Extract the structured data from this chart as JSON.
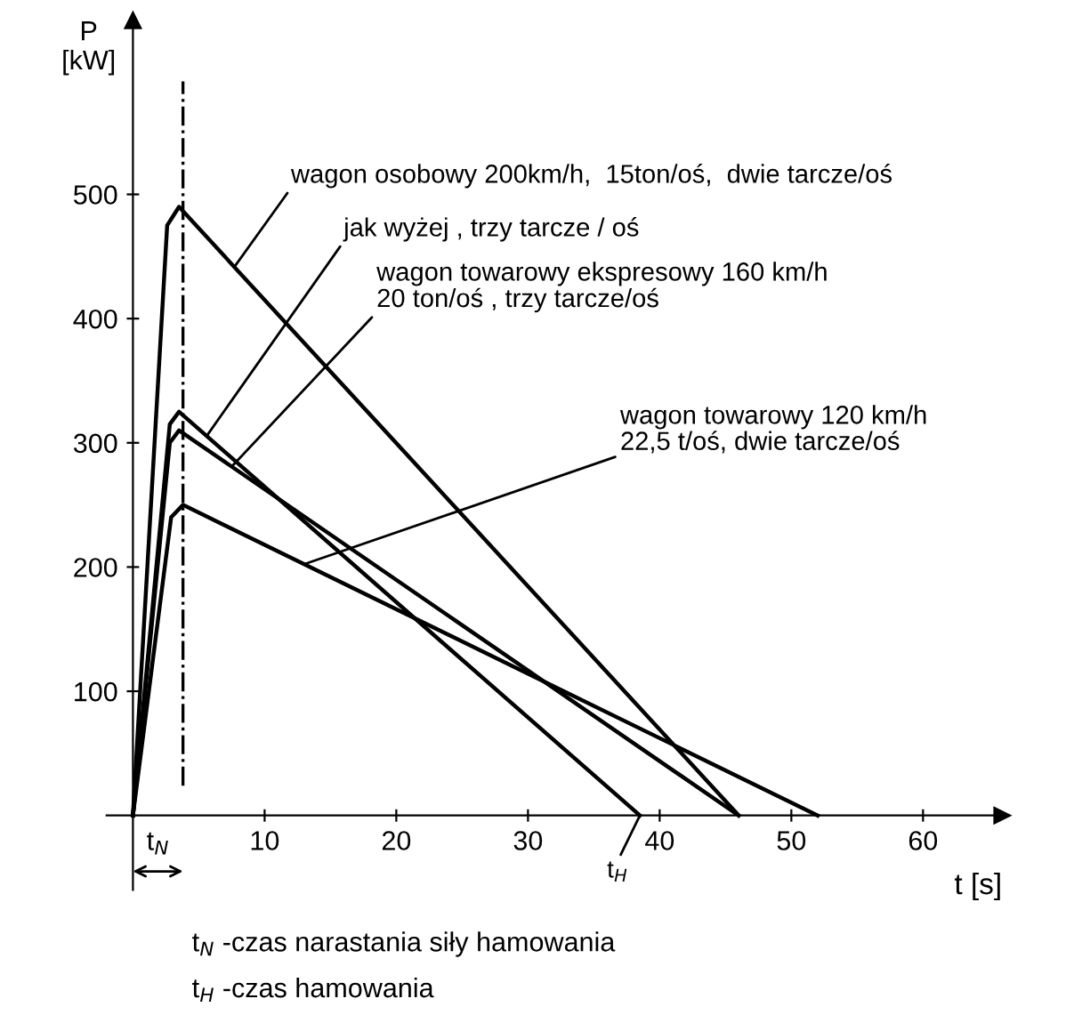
{
  "chart_data": {
    "type": "line",
    "xlabel": "t [s]",
    "ylabel": "P\n[kW]",
    "xlim": [
      -2,
      66
    ],
    "ylim": [
      -60,
      640
    ],
    "xticks": [
      10,
      20,
      30,
      40,
      50,
      60
    ],
    "yticks": [
      100,
      200,
      300,
      400,
      500
    ],
    "grid": false,
    "legend": false,
    "marker": "none",
    "line_style": "solid",
    "series": [
      {
        "name": "wagon osobowy 200km/h,  15ton/oś,  dwie tarcze/oś",
        "color": "#000000",
        "x": [
          0,
          2.6,
          3.5,
          46
        ],
        "values": [
          0,
          475,
          490,
          0
        ]
      },
      {
        "name": "jak wyżej , trzy tarcze / oś",
        "color": "#000000",
        "x": [
          0,
          2.8,
          3.5,
          38.5
        ],
        "values": [
          0,
          315,
          325,
          0
        ]
      },
      {
        "name": "wagon towarowy ekspresowy 160 km/h\n20 ton/oś , trzy tarcze/oś",
        "color": "#000000",
        "x": [
          0,
          2.8,
          3.5,
          46
        ],
        "values": [
          0,
          300,
          310,
          0
        ]
      },
      {
        "name": "wagon towarowy 120 km/h\n22,5 t/oś, dwie tarcze/oś",
        "color": "#000000",
        "x": [
          0,
          2.9,
          3.8,
          52
        ],
        "values": [
          0,
          240,
          250,
          0
        ]
      }
    ],
    "ref_lines": [
      {
        "axis": "x",
        "value": 3.8,
        "label": "t$_{N}$",
        "line_style": "dashdot",
        "color": "#000000"
      }
    ],
    "annotations": [
      {
        "text": "t$_{H}$",
        "x": 38.5,
        "y": 0
      },
      "t$_{N}$ -czas narastania siły hamowania",
      "t$_{H}$ -czas hamowania"
    ]
  }
}
